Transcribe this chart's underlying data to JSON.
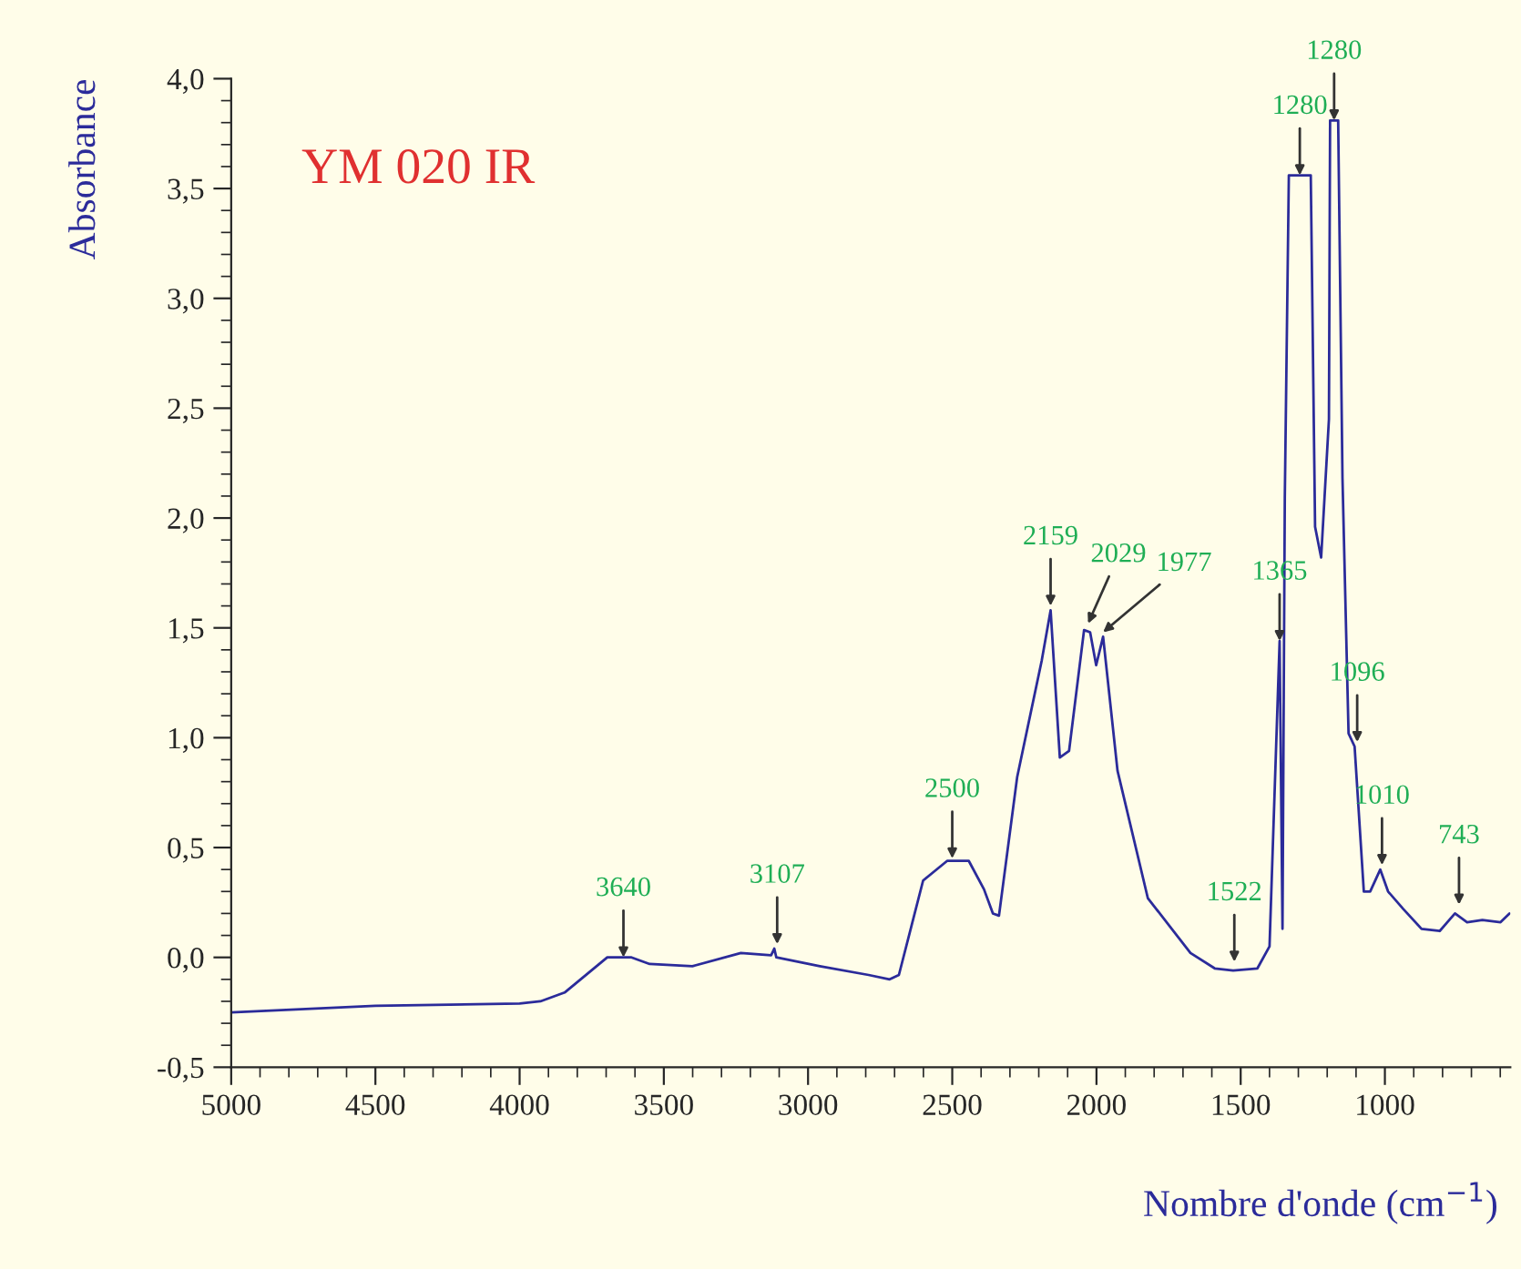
{
  "chart_data": {
    "type": "line",
    "title": "YM 020 IR",
    "xlabel": "Nombre d'onde (cm$^{−1}$)",
    "ylabel": "Absorbance",
    "x": [
      5000,
      4500,
      4000,
      3928,
      3844,
      3696,
      3612,
      3549,
      3401,
      3233,
      3128,
      3117,
      3110,
      2959,
      2790,
      2717,
      2685,
      2601,
      2517,
      2443,
      2390,
      2359,
      2338,
      2275,
      2190,
      2159,
      2127,
      2095,
      2043,
      2022,
      2001,
      1977,
      1927,
      1822,
      1674,
      1590,
      1526,
      1442,
      1400,
      1365,
      1355,
      1347,
      1333,
      1257,
      1242,
      1221,
      1194,
      1190,
      1162,
      1147,
      1126,
      1105,
      1073,
      1051,
      1016,
      989,
      936,
      873,
      810,
      757,
      715,
      662,
      599,
      568
    ],
    "series": [
      {
        "color": "#2b2b9a",
        "values": [
          -0.25,
          -0.22,
          -0.21,
          -0.2,
          -0.16,
          0.0,
          0.0,
          -0.03,
          -0.04,
          0.02,
          0.01,
          0.04,
          0.0,
          -0.04,
          -0.08,
          -0.1,
          -0.08,
          0.35,
          0.44,
          0.44,
          0.31,
          0.2,
          0.19,
          0.82,
          1.35,
          1.58,
          0.91,
          0.94,
          1.49,
          1.48,
          1.33,
          1.46,
          0.85,
          0.27,
          0.02,
          -0.05,
          -0.06,
          -0.05,
          0.05,
          1.44,
          0.13,
          2.09,
          3.56,
          3.56,
          1.96,
          1.82,
          2.45,
          3.81,
          3.81,
          2.18,
          1.02,
          0.96,
          0.3,
          0.3,
          0.4,
          0.3,
          0.22,
          0.13,
          0.12,
          0.2,
          0.16,
          0.17,
          0.16,
          0.2
        ]
      }
    ],
    "xlim": [
      5000,
      565
    ],
    "ylim": [
      -0.5,
      4.0
    ],
    "xticks": [
      5000,
      4500,
      4000,
      3500,
      3000,
      2500,
      2000,
      1500,
      1000
    ],
    "yticks": [
      {
        "value": -0.5,
        "label": "-0,5"
      },
      {
        "value": 0.0,
        "label": "0,0"
      },
      {
        "value": 0.5,
        "label": "0,5"
      },
      {
        "value": 1.0,
        "label": "1,0"
      },
      {
        "value": 1.5,
        "label": "1,5"
      },
      {
        "value": 2.0,
        "label": "2,0"
      },
      {
        "value": 2.5,
        "label": "2,5"
      },
      {
        "value": 3.0,
        "label": "3,0"
      },
      {
        "value": 3.5,
        "label": "3,5"
      },
      {
        "value": 4.0,
        "label": "4,0"
      }
    ],
    "grid": false,
    "legend": false,
    "annotations": [
      {
        "text": "3640",
        "x": 3640,
        "y": 0.0
      },
      {
        "text": "3107",
        "x": 3107,
        "y": 0.06
      },
      {
        "text": "2500",
        "x": 2500,
        "y": 0.45
      },
      {
        "text": "2159",
        "x": 2159,
        "y": 1.6
      },
      {
        "text": "2029",
        "x": 2029,
        "y": 1.52
      },
      {
        "text": "1977",
        "x": 1977,
        "y": 1.48
      },
      {
        "text": "1522",
        "x": 1522,
        "y": -0.02
      },
      {
        "text": "1365",
        "x": 1365,
        "y": 1.44
      },
      {
        "text": "1280",
        "x": 1295,
        "y": 3.56
      },
      {
        "text": "1280",
        "x": 1176,
        "y": 3.81
      },
      {
        "text": "1096",
        "x": 1096,
        "y": 0.98
      },
      {
        "text": "1010",
        "x": 1010,
        "y": 0.42
      },
      {
        "text": "743",
        "x": 743,
        "y": 0.24
      }
    ]
  }
}
